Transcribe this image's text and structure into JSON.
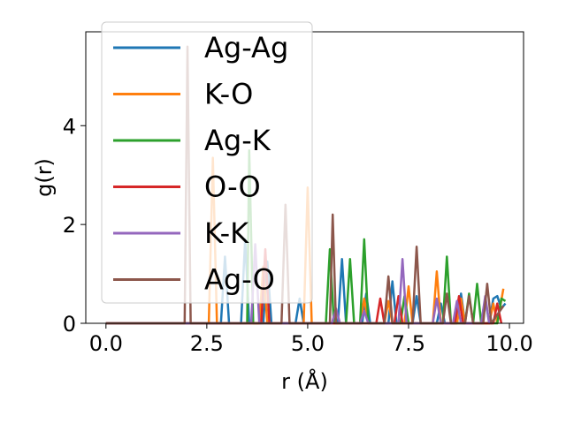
{
  "chart_data": {
    "type": "line",
    "xlabel": "r (Å)",
    "ylabel": "g(r)",
    "xlim": [
      -0.5,
      10.35
    ],
    "ylim": [
      0,
      5.9
    ],
    "xticks": [
      0.0,
      2.5,
      5.0,
      7.5,
      10.0
    ],
    "xtick_labels": [
      "0.0",
      "2.5",
      "5.0",
      "7.5",
      "10.0"
    ],
    "yticks": [
      0,
      2,
      4
    ],
    "ytick_labels": [
      "0",
      "2",
      "4"
    ],
    "grid": false,
    "legend_position": "top-left",
    "series": [
      {
        "name": "Ag-Ag",
        "color": "#1f77b4",
        "points": [
          [
            0,
            0
          ],
          [
            2.85,
            0
          ],
          [
            2.95,
            1.35
          ],
          [
            3.05,
            0
          ],
          [
            3.35,
            0
          ],
          [
            3.45,
            1.7
          ],
          [
            3.55,
            0
          ],
          [
            3.9,
            0
          ],
          [
            4.0,
            1.25
          ],
          [
            4.1,
            0
          ],
          [
            4.7,
            0
          ],
          [
            4.8,
            0.5
          ],
          [
            4.9,
            0
          ],
          [
            5.75,
            0
          ],
          [
            5.85,
            1.3
          ],
          [
            5.95,
            0
          ],
          [
            6.35,
            0
          ],
          [
            6.45,
            0.6
          ],
          [
            6.55,
            0
          ],
          [
            7.0,
            0
          ],
          [
            7.1,
            0.85
          ],
          [
            7.2,
            0
          ],
          [
            7.6,
            0
          ],
          [
            7.7,
            0.55
          ],
          [
            7.8,
            0
          ],
          [
            8.2,
            0
          ],
          [
            8.3,
            0.4
          ],
          [
            8.4,
            0
          ],
          [
            8.7,
            0
          ],
          [
            8.8,
            0.6
          ],
          [
            8.9,
            0
          ],
          [
            9.3,
            0
          ],
          [
            9.4,
            0.5
          ],
          [
            9.5,
            0
          ],
          [
            9.6,
            0.5
          ],
          [
            9.7,
            0.55
          ],
          [
            9.8,
            0.3
          ],
          [
            9.9,
            0.4
          ]
        ]
      },
      {
        "name": "K-O",
        "color": "#ff7f0e",
        "points": [
          [
            0,
            0
          ],
          [
            2.55,
            0
          ],
          [
            2.65,
            3.35
          ],
          [
            2.75,
            0
          ],
          [
            3.8,
            0
          ],
          [
            3.9,
            1.15
          ],
          [
            4.0,
            0
          ],
          [
            4.9,
            0
          ],
          [
            5.0,
            2.75
          ],
          [
            5.1,
            0
          ],
          [
            6.3,
            0
          ],
          [
            6.4,
            0.5
          ],
          [
            6.5,
            0
          ],
          [
            6.9,
            0
          ],
          [
            7.0,
            0.45
          ],
          [
            7.1,
            0
          ],
          [
            7.4,
            0
          ],
          [
            7.5,
            0.75
          ],
          [
            7.6,
            0
          ],
          [
            8.1,
            0
          ],
          [
            8.2,
            1.05
          ],
          [
            8.3,
            0
          ],
          [
            8.7,
            0
          ],
          [
            8.8,
            0.5
          ],
          [
            8.9,
            0
          ],
          [
            9.5,
            0
          ],
          [
            9.6,
            0.4
          ],
          [
            9.7,
            0
          ],
          [
            9.85,
            0.7
          ]
        ]
      },
      {
        "name": "Ag-K",
        "color": "#2ca02c",
        "points": [
          [
            0,
            0
          ],
          [
            3.5,
            0
          ],
          [
            3.55,
            3.5
          ],
          [
            3.65,
            0
          ],
          [
            5.45,
            0
          ],
          [
            5.55,
            1.5
          ],
          [
            5.65,
            0
          ],
          [
            5.95,
            0
          ],
          [
            6.05,
            1.3
          ],
          [
            6.15,
            0
          ],
          [
            6.3,
            0
          ],
          [
            6.4,
            1.7
          ],
          [
            6.5,
            0
          ],
          [
            7.3,
            0
          ],
          [
            7.4,
            0.55
          ],
          [
            7.5,
            0
          ],
          [
            8.35,
            0
          ],
          [
            8.45,
            1.35
          ],
          [
            8.55,
            0
          ],
          [
            8.9,
            0
          ],
          [
            9.0,
            0.6
          ],
          [
            9.1,
            0
          ],
          [
            9.2,
            0.8
          ],
          [
            9.3,
            0
          ],
          [
            9.7,
            0
          ],
          [
            9.8,
            0.5
          ],
          [
            9.9,
            0.45
          ]
        ]
      },
      {
        "name": "O-O",
        "color": "#d62728",
        "points": [
          [
            0,
            0
          ],
          [
            3.85,
            0
          ],
          [
            3.95,
            1.5
          ],
          [
            4.05,
            0
          ],
          [
            6.7,
            0
          ],
          [
            6.8,
            0.5
          ],
          [
            6.9,
            0
          ],
          [
            7.15,
            0
          ],
          [
            7.25,
            0.55
          ],
          [
            7.35,
            0
          ],
          [
            8.65,
            0
          ],
          [
            8.75,
            0.55
          ],
          [
            8.85,
            0
          ],
          [
            9.6,
            0
          ],
          [
            9.7,
            0.4
          ],
          [
            9.8,
            0
          ]
        ]
      },
      {
        "name": "K-K",
        "color": "#9467bd",
        "points": [
          [
            0,
            0
          ],
          [
            3.6,
            0
          ],
          [
            3.7,
            1.6
          ],
          [
            3.8,
            0
          ],
          [
            5.6,
            0
          ],
          [
            5.7,
            0.3
          ],
          [
            5.8,
            0
          ],
          [
            6.3,
            0
          ],
          [
            6.4,
            0.25
          ],
          [
            6.5,
            0
          ],
          [
            7.25,
            0
          ],
          [
            7.35,
            1.3
          ],
          [
            7.45,
            0
          ],
          [
            8.1,
            0
          ],
          [
            8.2,
            0.5
          ],
          [
            8.3,
            0
          ],
          [
            8.6,
            0
          ],
          [
            8.7,
            0.45
          ],
          [
            8.8,
            0
          ],
          [
            9.3,
            0
          ],
          [
            9.4,
            0.55
          ],
          [
            9.5,
            0
          ]
        ]
      },
      {
        "name": "Ag-O",
        "color": "#8c564b",
        "points": [
          [
            0,
            0
          ],
          [
            1.95,
            0
          ],
          [
            2.02,
            5.6
          ],
          [
            2.1,
            0
          ],
          [
            4.35,
            0
          ],
          [
            4.45,
            2.4
          ],
          [
            4.55,
            0
          ],
          [
            5.55,
            0
          ],
          [
            5.62,
            2.2
          ],
          [
            5.7,
            0
          ],
          [
            6.9,
            0
          ],
          [
            7.0,
            0.95
          ],
          [
            7.1,
            0
          ],
          [
            7.6,
            0
          ],
          [
            7.7,
            1.55
          ],
          [
            7.8,
            0
          ],
          [
            8.35,
            0
          ],
          [
            8.45,
            0.6
          ],
          [
            8.55,
            0
          ],
          [
            8.9,
            0
          ],
          [
            9.0,
            0.55
          ],
          [
            9.1,
            0
          ],
          [
            9.35,
            0
          ],
          [
            9.45,
            0.8
          ],
          [
            9.55,
            0
          ],
          [
            9.85,
            0.35
          ]
        ]
      }
    ]
  }
}
